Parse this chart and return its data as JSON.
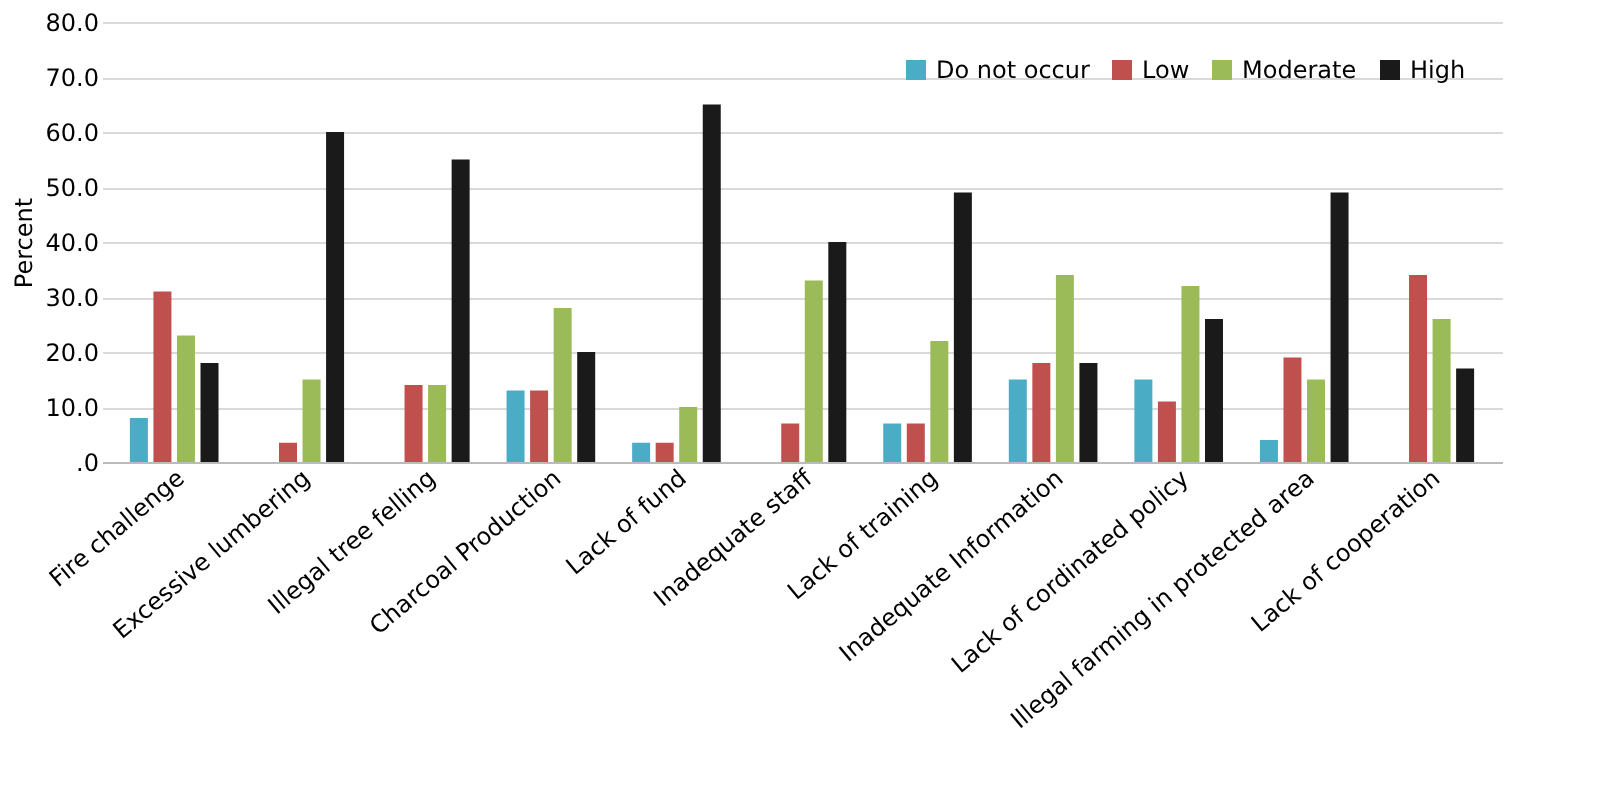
{
  "chart_data": {
    "type": "bar",
    "ylabel": "Percent",
    "categories": [
      "Fire challenge",
      "Excessive lumbering",
      "Illegal tree felling",
      "Charcoal Production",
      "Lack of fund",
      "Inadequate staff",
      "Lack of training",
      "Inadequate Information",
      "Lack of cordinated policy",
      "Illegal farming in protected area",
      "Lack of cooperation"
    ],
    "series": [
      {
        "name": "Do not occur",
        "color": "#4bacc6",
        "values": [
          8,
          0,
          0,
          13,
          3.5,
          0,
          7,
          15,
          15,
          4,
          0
        ]
      },
      {
        "name": "Low",
        "color": "#c0504d",
        "values": [
          31,
          3.5,
          14,
          13,
          3.5,
          7,
          7,
          18,
          11,
          19,
          34
        ]
      },
      {
        "name": "Moderate",
        "color": "#9bbb59",
        "values": [
          23,
          15,
          14,
          28,
          10,
          33,
          22,
          34,
          32,
          15,
          26
        ]
      },
      {
        "name": "High",
        "color": "#1a1a1a",
        "values": [
          18,
          60,
          55,
          20,
          65,
          40,
          49,
          18,
          26,
          49,
          17
        ]
      }
    ],
    "ylim": [
      0,
      80
    ],
    "yticks": [
      {
        "value": 0,
        "label": ".0"
      },
      {
        "value": 10,
        "label": "10.0"
      },
      {
        "value": 20,
        "label": "20.0"
      },
      {
        "value": 30,
        "label": "30.0"
      },
      {
        "value": 40,
        "label": "40.0"
      },
      {
        "value": 50,
        "label": "50.0"
      },
      {
        "value": 60,
        "label": "60.0"
      },
      {
        "value": 70,
        "label": "70.0"
      },
      {
        "value": 80,
        "label": "80.0"
      }
    ],
    "grid": "y",
    "legend": "top right"
  }
}
